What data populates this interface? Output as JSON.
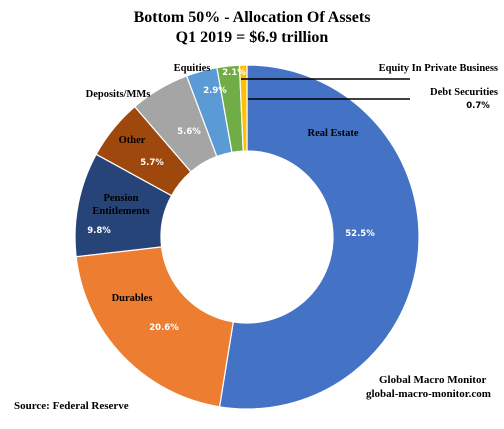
{
  "chart_data": {
    "type": "pie",
    "donut": true,
    "title": "Bottom 50% - Allocation Of Assets",
    "subtitle": "Q1 2019 = $6.9 trillion",
    "slices": [
      {
        "name": "Real Estate",
        "value": 52.5,
        "value_label": "52.5%",
        "color": "#4472c4",
        "label_lines": [
          "Real Estate"
        ],
        "label_inside": true
      },
      {
        "name": "Durables",
        "value": 20.6,
        "value_label": "20.6%",
        "color": "#ed7d31",
        "label_lines": [
          "Durables"
        ],
        "label_inside": true
      },
      {
        "name": "Pension Entitlements",
        "value": 9.8,
        "value_label": "9.8%",
        "color": "#264478",
        "label_lines": [
          "Pension",
          "Entitlements"
        ],
        "label_inside": true
      },
      {
        "name": "Other",
        "value": 5.7,
        "value_label": "5.7%",
        "color": "#9e480e",
        "label_lines": [
          "Other"
        ],
        "label_inside": true
      },
      {
        "name": "Deposits/MMs",
        "value": 5.6,
        "value_label": "5.6%",
        "color": "#a5a5a5",
        "label_lines": [
          "Deposits/MMs"
        ],
        "label_inside": false
      },
      {
        "name": "Equities",
        "value": 2.9,
        "value_label": "2.9%",
        "color": "#5b9bd5",
        "label_lines": [
          "Equities"
        ],
        "label_inside": false
      },
      {
        "name": "Equity In Private Business",
        "value": 2.1,
        "value_label": "2.1%",
        "color": "#70ad47",
        "label_lines": [
          "Equity In Private Business"
        ],
        "label_inside": false
      },
      {
        "name": "Debt Securities",
        "value": 0.7,
        "value_label": "0.7%",
        "color": "#ffc000",
        "label_lines": [
          "Debt Securities"
        ],
        "label_inside": false
      }
    ]
  },
  "footer": {
    "source": "Source: Federal Reserve",
    "brand_name": "Global Macro Monitor",
    "brand_url": "global-macro-monitor.com"
  }
}
